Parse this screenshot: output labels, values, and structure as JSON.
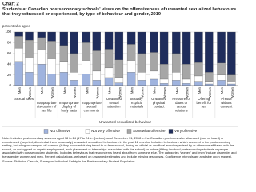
{
  "chart_data": {
    "type": "stacked-bar",
    "chart_number": "Chart 2",
    "title": "Students at Canadian postsecondary schools' views on the offensiveness of unwanted sexualized behaviours that they witnessed or experienced, by type of behaviour and gender, 2019",
    "y_label": "percent who agree",
    "x_label": "Unwanted sexualized behaviour",
    "groups": [
      "Sexual jokes",
      "Inappropriate discussion of sex life",
      "Inappropriate display of body parts",
      "Inappropriate sexual comments",
      "Unwanted sexual attention",
      "Sexually explicit materials",
      "Unwanted physical contact",
      "Pressure for dates or sexual relations",
      "Offering benefit for sex",
      "Photos without consent"
    ],
    "categories": [
      "Men",
      "Women",
      "Men",
      "Women",
      "Men",
      "Women",
      "Men",
      "Women",
      "Men",
      "Women",
      "Men",
      "Women",
      "Men",
      "Women",
      "Men",
      "Women",
      "Men",
      "Women",
      "Men",
      "Women"
    ],
    "series": [
      {
        "name": "Not offensive",
        "color": "#9fb3de",
        "values": [
          45,
          25,
          40,
          22,
          25,
          10,
          22,
          10,
          15,
          5,
          25,
          10,
          12,
          4,
          10,
          4,
          8,
          3,
          10,
          3
        ]
      },
      {
        "name": "Not very offensive",
        "color": "#ffffff",
        "values": [
          25,
          28,
          27,
          28,
          20,
          15,
          25,
          17,
          18,
          10,
          22,
          15,
          15,
          8,
          15,
          8,
          10,
          5,
          10,
          4
        ]
      },
      {
        "name": "Somewhat offensive",
        "color": "#a6a6a6",
        "values": [
          22,
          32,
          23,
          33,
          30,
          35,
          33,
          38,
          35,
          33,
          30,
          35,
          35,
          28,
          35,
          28,
          25,
          17,
          22,
          13
        ]
      },
      {
        "name": "Very offensive",
        "color": "#1f2d5c",
        "values": [
          8,
          15,
          10,
          17,
          25,
          40,
          20,
          35,
          32,
          52,
          23,
          40,
          38,
          60,
          40,
          60,
          57,
          75,
          58,
          80
        ]
      }
    ],
    "ylim": [
      0,
      100
    ],
    "yticks": [
      0,
      20,
      40,
      60,
      80,
      100
    ],
    "grid": true,
    "notes": "Note: Includes postsecondary students aged 18 to 24 (17 to 24 in Quebec) as of December 31, 2018 in the Canadian provinces who witnessed (saw or heard) or experienced (targeted, directed at them personally) unwanted sexualized behaviours in the past 12 months. Includes behaviours which occurred in the postsecondary setting, including on campus, off campus (if they occurred during travel to or from school, during an official or unofficial event organized by or otherwise affiliated with the school, or during paid or unpaid employment, work placement or internships associated with the school) or online (if they involved postsecondary students or people associated with postsecondary students). Includes behaviours that respondents heard about from someone else. The categories 'women' and 'men' include cisgender and transgender women and men. Percent calculations are based on unwanted estimates and include missing responses. Confidence intervals are available upon request.",
    "source": "Source: Statistics Canada, Survey on Individual Safety in the Postsecondary Student Population."
  }
}
